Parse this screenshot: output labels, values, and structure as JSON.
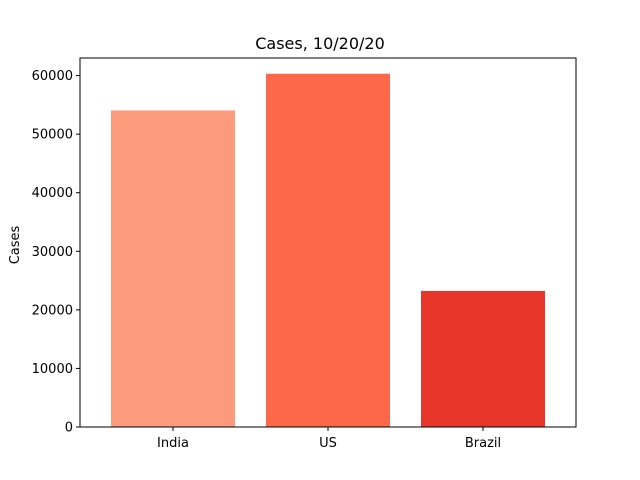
{
  "chart_data": {
    "type": "bar",
    "title": "Cases, 10/20/20",
    "xlabel": "",
    "ylabel": "Cases",
    "categories": [
      "India",
      "US",
      "Brazil"
    ],
    "values": [
      54044,
      60315,
      23227
    ],
    "colors": [
      "#fc9a7c",
      "#fb694a",
      "#e8362b"
    ],
    "ylim": [
      0,
      63000
    ],
    "yticks": [
      0,
      10000,
      20000,
      30000,
      40000,
      50000,
      60000
    ],
    "grid": false,
    "legend": "none"
  }
}
